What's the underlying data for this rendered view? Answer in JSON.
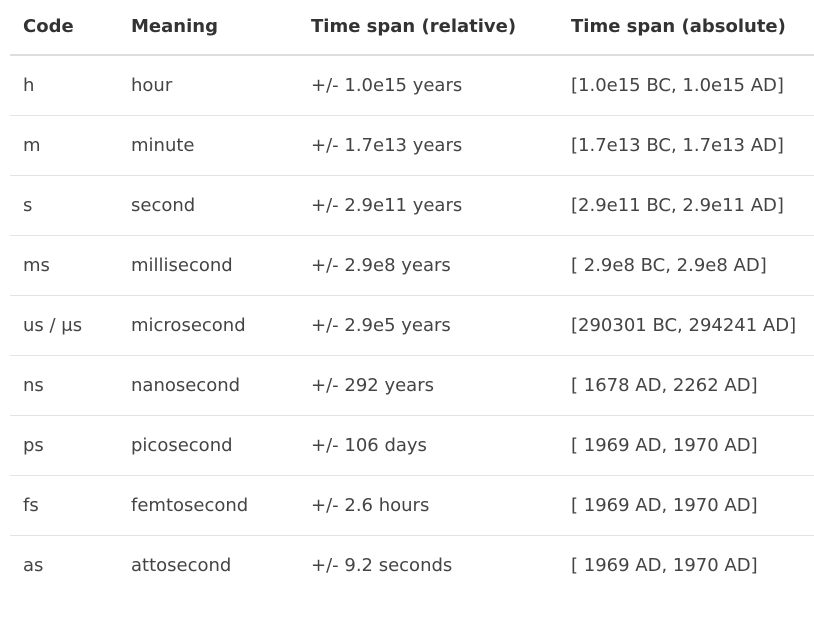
{
  "table": {
    "headers": [
      "Code",
      "Meaning",
      "Time span (relative)",
      "Time span (absolute)"
    ],
    "rows": [
      [
        "h",
        "hour",
        "+/- 1.0e15 years",
        "[1.0e15 BC, 1.0e15 AD]"
      ],
      [
        "m",
        "minute",
        "+/- 1.7e13 years",
        "[1.7e13 BC, 1.7e13 AD]"
      ],
      [
        "s",
        "second",
        "+/- 2.9e11 years",
        "[2.9e11 BC, 2.9e11 AD]"
      ],
      [
        "ms",
        "millisecond",
        "+/- 2.9e8 years",
        "[ 2.9e8 BC, 2.9e8 AD]"
      ],
      [
        "us / μs",
        "microsecond",
        "+/- 2.9e5 years",
        "[290301 BC, 294241 AD]"
      ],
      [
        "ns",
        "nanosecond",
        "+/- 292 years",
        "[ 1678 AD, 2262 AD]"
      ],
      [
        "ps",
        "picosecond",
        "+/- 106 days",
        "[ 1969 AD, 1970 AD]"
      ],
      [
        "fs",
        "femtosecond",
        "+/- 2.6 hours",
        "[ 1969 AD, 1970 AD]"
      ],
      [
        "as",
        "attosecond",
        "+/- 9.2 seconds",
        "[ 1969 AD, 1970 AD]"
      ]
    ]
  }
}
